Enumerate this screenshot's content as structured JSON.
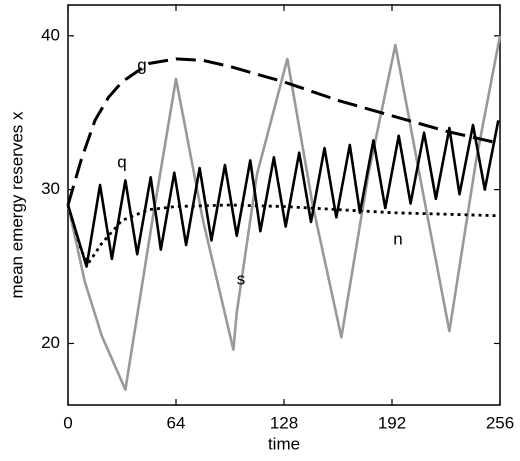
{
  "chart_data": {
    "type": "line",
    "xlabel": "time",
    "ylabel": "mean emergy reserves x",
    "xlim": [
      0,
      256
    ],
    "ylim": [
      16,
      42
    ],
    "xticks": [
      0,
      64,
      128,
      192,
      256
    ],
    "yticks": [
      20,
      30,
      40
    ],
    "grid": false,
    "series": [
      {
        "name": "g",
        "color": "#000000",
        "style": "dashed",
        "x": [
          0,
          8,
          16,
          24,
          32,
          48,
          64,
          80,
          96,
          128,
          160,
          192,
          224,
          256
        ],
        "values": [
          29,
          32,
          34.5,
          36,
          37,
          38.2,
          38.5,
          38.4,
          38,
          37,
          35.8,
          34.8,
          33.8,
          33
        ]
      },
      {
        "name": "q",
        "color": "#000000",
        "style": "solid",
        "x": [
          0,
          11,
          19,
          26,
          34,
          41,
          49,
          55,
          63,
          70,
          78,
          85,
          93,
          100,
          108,
          114,
          122,
          129,
          137,
          144,
          152,
          159,
          167,
          173,
          181,
          188,
          196,
          203,
          211,
          218,
          226,
          232,
          240,
          247,
          255
        ],
        "values": [
          29,
          25,
          30.3,
          25.5,
          30.6,
          25.8,
          30.8,
          26.1,
          31.1,
          26.4,
          31.4,
          26.7,
          31.6,
          27,
          31.9,
          27.3,
          32.1,
          27.6,
          32.4,
          27.9,
          32.7,
          28.2,
          32.9,
          28.5,
          33.2,
          28.8,
          33.5,
          29.1,
          33.7,
          29.4,
          34,
          29.7,
          34.2,
          30,
          34.5
        ]
      },
      {
        "name": "n",
        "color": "#000000",
        "style": "dotted",
        "x": [
          0,
          8,
          12,
          20,
          32,
          48,
          64,
          96,
          128,
          160,
          192,
          224,
          256
        ],
        "values": [
          29,
          26,
          25.2,
          26.5,
          28,
          28.7,
          28.9,
          29,
          28.9,
          28.7,
          28.5,
          28.4,
          28.3
        ]
      },
      {
        "name": "s",
        "color": "#999999",
        "style": "solid",
        "x": [
          0,
          10,
          20,
          34,
          50,
          64,
          80,
          98,
          100,
          112,
          130,
          145,
          162,
          178,
          194,
          210,
          226,
          242,
          256
        ],
        "values": [
          29,
          24,
          20.5,
          17,
          28,
          37.2,
          28,
          19.6,
          22,
          31,
          38.5,
          29,
          20.4,
          31,
          39.4,
          30,
          20.8,
          32,
          40
        ]
      }
    ]
  }
}
